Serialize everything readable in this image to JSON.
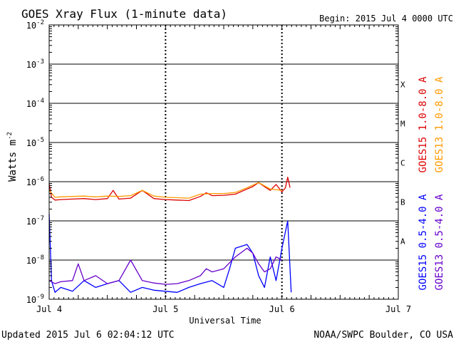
{
  "chart_data": {
    "type": "line",
    "title": "GOES Xray Flux (1-minute data)",
    "begin_label": "Begin:  2015 Jul 4 0000 UTC",
    "ylabel": "Watts m",
    "ylabel_sup": "-2",
    "xlabel": "Universal Time",
    "y_scale": "log",
    "ylim": [
      1e-09,
      0.01
    ],
    "y_ticks": [
      {
        "mant": "10",
        "exp": "-9"
      },
      {
        "mant": "10",
        "exp": "-8"
      },
      {
        "mant": "10",
        "exp": "-7"
      },
      {
        "mant": "10",
        "exp": "-6"
      },
      {
        "mant": "10",
        "exp": "-5"
      },
      {
        "mant": "10",
        "exp": "-4"
      },
      {
        "mant": "10",
        "exp": "-3"
      },
      {
        "mant": "10",
        "exp": "-2"
      }
    ],
    "x_ticks": [
      "Jul 4",
      "Jul 5",
      "Jul 6",
      "Jul 7"
    ],
    "xlim_days": [
      0,
      3
    ],
    "flare_classes": [
      {
        "label": "A",
        "at": 1e-08
      },
      {
        "label": "B",
        "at": 1e-07
      },
      {
        "label": "C",
        "at": 1e-06
      },
      {
        "label": "M",
        "at": 1e-05
      },
      {
        "label": "X",
        "at": 0.0001
      }
    ],
    "grid": true,
    "series": [
      {
        "name": "GOES15 1.0-8.0 A",
        "color": "#dd0000",
        "x": [
          0.0,
          0.02,
          0.05,
          0.1,
          0.2,
          0.3,
          0.4,
          0.5,
          0.55,
          0.6,
          0.7,
          0.8,
          0.9,
          1.0,
          1.1,
          1.2,
          1.3,
          1.35,
          1.4,
          1.5,
          1.6,
          1.7,
          1.75,
          1.8,
          1.85,
          1.9,
          1.95,
          2.0,
          2.03,
          2.05,
          2.07
        ],
        "values": [
          9e-07,
          4e-07,
          3.4e-07,
          3.5e-07,
          3.6e-07,
          3.7e-07,
          3.5e-07,
          3.7e-07,
          6e-07,
          3.6e-07,
          3.8e-07,
          6e-07,
          3.7e-07,
          3.5e-07,
          3.4e-07,
          3.3e-07,
          4.2e-07,
          5.2e-07,
          4.4e-07,
          4.5e-07,
          4.8e-07,
          6.5e-07,
          7.5e-07,
          9.5e-07,
          7.5e-07,
          6e-07,
          8.5e-07,
          5.5e-07,
          7e-07,
          1.3e-06,
          7e-07
        ]
      },
      {
        "name": "GOES13 1.0-8.0 A",
        "color": "#ff9900",
        "x": [
          0.0,
          0.05,
          0.1,
          0.2,
          0.3,
          0.4,
          0.5,
          0.6,
          0.7,
          0.8,
          0.9,
          1.0,
          1.1,
          1.2,
          1.3,
          1.4,
          1.5,
          1.6,
          1.7,
          1.8,
          1.9,
          2.0
        ],
        "values": [
          6e-07,
          4e-07,
          4.1e-07,
          4.2e-07,
          4.3e-07,
          4.1e-07,
          4.3e-07,
          4.2e-07,
          4.4e-07,
          6e-07,
          4.3e-07,
          4e-07,
          3.9e-07,
          3.8e-07,
          4.8e-07,
          5e-07,
          5e-07,
          5.3e-07,
          7e-07,
          9.5e-07,
          6.5e-07,
          6e-07
        ]
      },
      {
        "name": "GOES15 0.5-4.0 A",
        "color": "#0000ff",
        "x": [
          0.0,
          0.02,
          0.05,
          0.1,
          0.2,
          0.3,
          0.4,
          0.5,
          0.6,
          0.7,
          0.8,
          0.9,
          1.0,
          1.1,
          1.2,
          1.3,
          1.4,
          1.5,
          1.55,
          1.6,
          1.7,
          1.75,
          1.8,
          1.85,
          1.9,
          1.95,
          2.0,
          2.05,
          2.08
        ],
        "values": [
          1.5e-07,
          3e-09,
          1.5e-09,
          2e-09,
          1.6e-09,
          3e-09,
          2e-09,
          2.5e-09,
          3e-09,
          1.5e-09,
          2e-09,
          1.7e-09,
          1.6e-09,
          1.5e-09,
          2e-09,
          2.5e-09,
          3e-09,
          2e-09,
          6e-09,
          2e-08,
          2.5e-08,
          1.5e-08,
          4e-09,
          2e-09,
          1.2e-08,
          3e-09,
          2e-08,
          1e-07,
          1.5e-09
        ]
      },
      {
        "name": "GOES13 0.5-4.0 A",
        "color": "#6600cc",
        "x": [
          0.0,
          0.05,
          0.1,
          0.2,
          0.25,
          0.3,
          0.4,
          0.5,
          0.6,
          0.7,
          0.8,
          0.9,
          1.0,
          1.1,
          1.2,
          1.3,
          1.35,
          1.4,
          1.5,
          1.6,
          1.7,
          1.75,
          1.8,
          1.85,
          1.9,
          1.95,
          2.0
        ],
        "values": [
          3e-09,
          2.5e-09,
          2.8e-09,
          3e-09,
          8e-09,
          3e-09,
          4e-09,
          2.5e-09,
          3e-09,
          1e-08,
          3e-09,
          2.6e-09,
          2.4e-09,
          2.5e-09,
          3e-09,
          4e-09,
          6e-09,
          5e-09,
          6e-09,
          1.2e-08,
          2e-08,
          1.5e-08,
          8e-09,
          5e-09,
          6e-09,
          1.2e-08,
          1e-08
        ]
      }
    ]
  },
  "footer": {
    "updated": "Updated 2015 Jul  6 02:04:12 UTC",
    "credit": "NOAA/SWPC Boulder, CO USA"
  }
}
